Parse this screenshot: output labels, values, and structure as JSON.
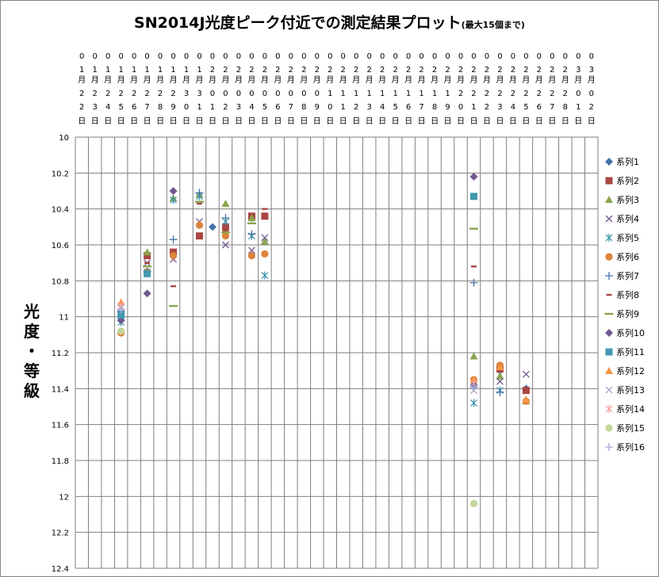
{
  "chart_data": {
    "type": "scatter",
    "title": "SN2014J光度ピーク付近での測定結果プロット",
    "title_note": "(最大15個まで)",
    "ylabel": "光度・等級",
    "y_inverted": true,
    "ylim": [
      10,
      12.4
    ],
    "y_ticks": [
      "10",
      "10.2",
      "10.4",
      "10.6",
      "10.8",
      "11",
      "11.2",
      "11.4",
      "11.6",
      "11.8",
      "12",
      "12.2",
      "12.4"
    ],
    "categories": [
      "01月22日",
      "01月23日",
      "01月24日",
      "01月25日",
      "01月26日",
      "01月27日",
      "01月28日",
      "01月29日",
      "01月30日",
      "01月31日",
      "02月01日",
      "02月02日",
      "02月03日",
      "02月04日",
      "02月05日",
      "02月06日",
      "02月07日",
      "02月08日",
      "02月09日",
      "02月10日",
      "02月11日",
      "02月12日",
      "02月13日",
      "02月14日",
      "02月15日",
      "02月16日",
      "02月17日",
      "02月18日",
      "02月19日",
      "02月20日",
      "02月21日",
      "02月22日",
      "02月23日",
      "02月24日",
      "02月25日",
      "02月26日",
      "02月27日",
      "02月28日",
      "03月01日",
      "03月02日"
    ],
    "grid": true,
    "legend_position": "right",
    "series": [
      {
        "name": "系列1",
        "color": "#4572a7",
        "marker": "diamond",
        "points": [
          [
            "01月25日",
            11.02
          ],
          [
            "01月27日",
            10.65
          ],
          [
            "01月29日",
            10.65
          ],
          [
            "02月01日",
            10.5
          ],
          [
            "02月04日",
            10.45
          ],
          [
            "02月21日",
            11.38
          ],
          [
            "02月23日",
            11.3
          ],
          [
            "02月25日",
            11.4
          ]
        ]
      },
      {
        "name": "系列2",
        "color": "#aa4643",
        "marker": "square",
        "points": [
          [
            "01月27日",
            10.66
          ],
          [
            "01月29日",
            10.64
          ],
          [
            "01月31日",
            10.55
          ],
          [
            "02月02日",
            10.5
          ],
          [
            "02月04日",
            10.44
          ],
          [
            "02月05日",
            10.44
          ],
          [
            "02月23日",
            11.29
          ],
          [
            "02月25日",
            11.41
          ]
        ]
      },
      {
        "name": "系列3",
        "color": "#89a54e",
        "marker": "triangle",
        "points": [
          [
            "01月27日",
            10.64
          ],
          [
            "01月29日",
            10.34
          ],
          [
            "01月31日",
            10.32
          ],
          [
            "02月02日",
            10.37
          ],
          [
            "02月04日",
            10.45
          ],
          [
            "02月05日",
            10.58
          ],
          [
            "02月21日",
            11.22
          ],
          [
            "02月23日",
            11.33
          ],
          [
            "02月25日",
            11.47
          ]
        ]
      },
      {
        "name": "系列4",
        "color": "#71588f",
        "marker": "x",
        "points": [
          [
            "01月25日",
            10.98
          ],
          [
            "01月27日",
            10.7
          ],
          [
            "01月29日",
            10.68
          ],
          [
            "01月31日",
            10.47
          ],
          [
            "02月02日",
            10.6
          ],
          [
            "02月04日",
            10.63
          ],
          [
            "02月05日",
            10.56
          ],
          [
            "02月21日",
            11.38
          ],
          [
            "02月23日",
            11.36
          ],
          [
            "02月25日",
            11.32
          ]
        ]
      },
      {
        "name": "系列5",
        "color": "#4198af",
        "marker": "asterisk",
        "points": [
          [
            "01月25日",
            11.03
          ],
          [
            "01月27日",
            10.75
          ],
          [
            "01月29日",
            10.35
          ],
          [
            "01月31日",
            10.33
          ],
          [
            "02月02日",
            10.47
          ],
          [
            "02月04日",
            10.55
          ],
          [
            "02月05日",
            10.77
          ],
          [
            "02月21日",
            11.48
          ],
          [
            "02月23日",
            11.41
          ]
        ]
      },
      {
        "name": "系列6",
        "color": "#db843d",
        "marker": "circle",
        "points": [
          [
            "01月25日",
            11.09
          ],
          [
            "01月27日",
            10.75
          ],
          [
            "01月29日",
            10.66
          ],
          [
            "01月31日",
            10.49
          ],
          [
            "02月02日",
            10.55
          ],
          [
            "02月04日",
            10.66
          ],
          [
            "02月05日",
            10.65
          ],
          [
            "02月21日",
            11.35
          ],
          [
            "02月23日",
            11.27
          ],
          [
            "02月25日",
            11.47
          ]
        ]
      },
      {
        "name": "系列7",
        "color": "#4572a7",
        "marker": "plus",
        "points": [
          [
            "01月25日",
            10.97
          ],
          [
            "01月27日",
            10.75
          ],
          [
            "01月29日",
            10.57
          ],
          [
            "01月31日",
            10.31
          ],
          [
            "02月02日",
            10.45
          ],
          [
            "02月04日",
            10.54
          ],
          [
            "02月21日",
            10.81
          ],
          [
            "02月23日",
            11.42
          ]
        ]
      },
      {
        "name": "系列8",
        "color": "#aa4643",
        "marker": "dash",
        "points": [
          [
            "01月27日",
            10.7
          ],
          [
            "01月29日",
            10.83
          ],
          [
            "01月31日",
            10.37
          ],
          [
            "02月02日",
            10.52
          ],
          [
            "02月05日",
            10.4
          ],
          [
            "02月21日",
            10.72
          ]
        ]
      },
      {
        "name": "系列9",
        "color": "#89a54e",
        "marker": "longdash",
        "points": [
          [
            "01月27日",
            10.72
          ],
          [
            "01月29日",
            10.94
          ],
          [
            "01月31日",
            10.36
          ],
          [
            "02月02日",
            10.53
          ],
          [
            "02月04日",
            10.48
          ],
          [
            "02月21日",
            10.51
          ]
        ]
      },
      {
        "name": "系列10",
        "color": "#71588f",
        "marker": "diamond",
        "points": [
          [
            "01月25日",
            11.02
          ],
          [
            "01月27日",
            10.87
          ],
          [
            "01月29日",
            10.3
          ],
          [
            "02月21日",
            10.22
          ]
        ]
      },
      {
        "name": "系列11",
        "color": "#4198af",
        "marker": "square",
        "points": [
          [
            "01月25日",
            10.99
          ],
          [
            "01月27日",
            10.76
          ],
          [
            "02月21日",
            10.33
          ]
        ]
      },
      {
        "name": "系列12",
        "color": "#f79646",
        "marker": "triangle",
        "points": [
          [
            "01月25日",
            10.92
          ],
          [
            "02月21日",
            11.35
          ],
          [
            "02月23日",
            11.28
          ],
          [
            "02月25日",
            11.46
          ]
        ]
      },
      {
        "name": "系列13",
        "color": "#a5a5c8",
        "marker": "x",
        "points": [
          [
            "01月25日",
            10.95
          ],
          [
            "02月21日",
            11.41
          ]
        ]
      },
      {
        "name": "系列14",
        "color": "#f2a3a3",
        "marker": "asterisk",
        "points": [
          [
            "01月25日",
            10.94
          ],
          [
            "02月21日",
            11.37
          ]
        ]
      },
      {
        "name": "系列15",
        "color": "#c3d69b",
        "marker": "circle",
        "points": [
          [
            "01月25日",
            11.08
          ],
          [
            "02月21日",
            12.04
          ]
        ]
      },
      {
        "name": "系列16",
        "color": "#9fa8d6",
        "marker": "plus",
        "points": [
          [
            "01月25日",
            10.96
          ],
          [
            "02月21日",
            11.39
          ]
        ]
      }
    ]
  }
}
